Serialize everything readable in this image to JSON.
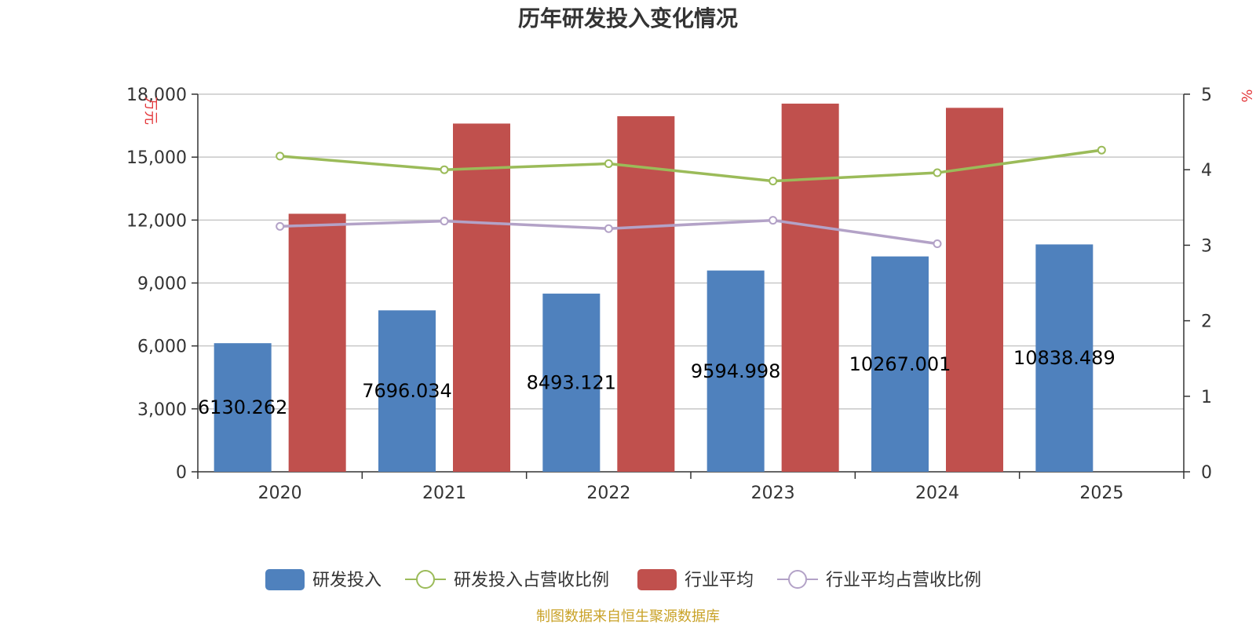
{
  "chart_data": {
    "type": "bar",
    "title": "历年研发投入变化情况",
    "categories": [
      "2020",
      "2021",
      "2022",
      "2023",
      "2024",
      "2025"
    ],
    "y_left": {
      "unit": "万元",
      "ylim": [
        0,
        18000
      ],
      "ticks": [
        "0",
        "3,000",
        "6,000",
        "9,000",
        "12,000",
        "15,000",
        "18,000"
      ]
    },
    "y_right": {
      "unit": "%",
      "ylim": [
        0,
        5
      ],
      "ticks": [
        "0",
        "1",
        "2",
        "3",
        "4",
        "5"
      ]
    },
    "series": [
      {
        "name": "研发投入",
        "kind": "bar",
        "axis": "left",
        "color": "#4f81bd",
        "values": [
          6130.262,
          7696.034,
          8493.121,
          9594.998,
          10267.001,
          10838.489
        ],
        "labels": [
          "6130.262",
          "7696.034",
          "8493.121",
          "9594.998",
          "10267.001",
          "10838.489"
        ]
      },
      {
        "name": "研发投入占营收比例",
        "kind": "line",
        "axis": "right",
        "color": "#9bbb59",
        "values": [
          4.18,
          4.0,
          4.08,
          3.85,
          3.96,
          4.26
        ]
      },
      {
        "name": "行业平均",
        "kind": "bar",
        "axis": "left",
        "color": "#c0504d",
        "values": [
          12300,
          16600,
          16950,
          17550,
          17350,
          null
        ]
      },
      {
        "name": "行业平均占营收比例",
        "kind": "line",
        "axis": "right",
        "color": "#b3a2c7",
        "values": [
          3.25,
          3.32,
          3.22,
          3.33,
          3.02,
          null
        ]
      }
    ],
    "grid": true,
    "legend": "bottom"
  },
  "footer": {
    "source": "制图数据来自恒生聚源数据库"
  }
}
